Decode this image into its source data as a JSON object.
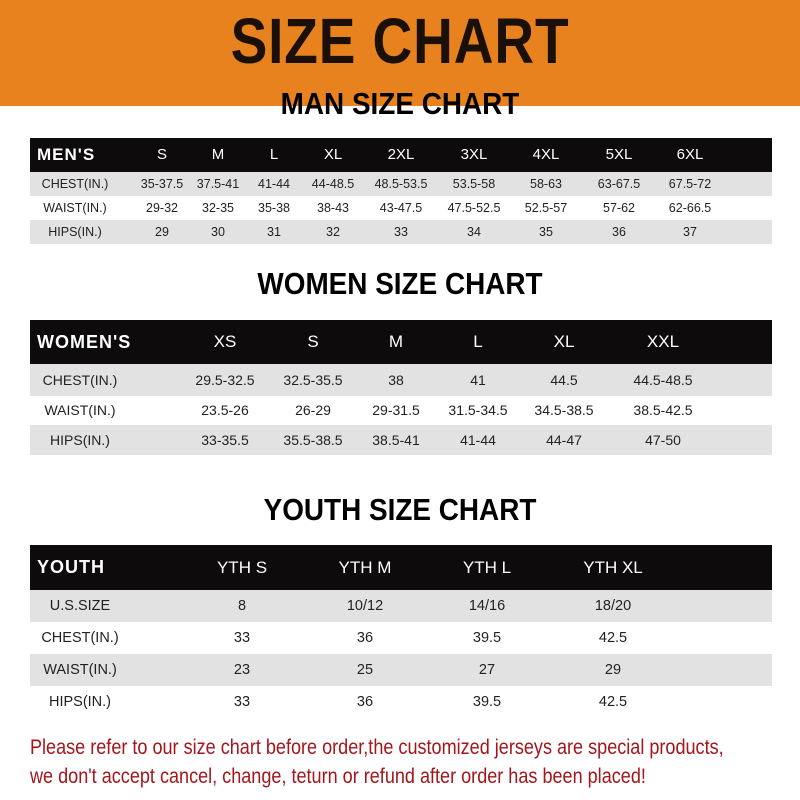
{
  "banner": {
    "title": "SIZE CHART",
    "color": "#e8821e"
  },
  "men": {
    "title": "MAN SIZE CHART",
    "header": [
      "MEN'S",
      "S",
      "M",
      "L",
      "XL",
      "2XL",
      "3XL",
      "4XL",
      "5XL",
      "6XL"
    ],
    "rows": [
      [
        "CHEST(IN.)",
        "35-37.5",
        "37.5-41",
        "41-44",
        "44-48.5",
        "48.5-53.5",
        "53.5-58",
        "58-63",
        "63-67.5",
        "67.5-72"
      ],
      [
        "WAIST(IN.)",
        "29-32",
        "32-35",
        "35-38",
        "38-43",
        "43-47.5",
        "47.5-52.5",
        "52.5-57",
        "57-62",
        "62-66.5"
      ],
      [
        "HIPS(IN.)",
        "29",
        "30",
        "31",
        "32",
        "33",
        "34",
        "35",
        "36",
        "37"
      ]
    ]
  },
  "women": {
    "title": "WOMEN SIZE CHART",
    "header": [
      "WOMEN'S",
      "XS",
      "S",
      "M",
      "L",
      "XL",
      "XXL"
    ],
    "rows": [
      [
        "CHEST(IN.)",
        "29.5-32.5",
        "32.5-35.5",
        "38",
        "41",
        "44.5",
        "44.5-48.5"
      ],
      [
        "WAIST(IN.)",
        "23.5-26",
        "26-29",
        "29-31.5",
        "31.5-34.5",
        "34.5-38.5",
        "38.5-42.5"
      ],
      [
        "HIPS(IN.)",
        "33-35.5",
        "35.5-38.5",
        "38.5-41",
        "41-44",
        "44-47",
        "47-50"
      ]
    ]
  },
  "youth": {
    "title": "YOUTH SIZE CHART",
    "header": [
      "YOUTH",
      "YTH S",
      "YTH M",
      "YTH L",
      "YTH XL"
    ],
    "rows": [
      [
        "U.S.SIZE",
        "8",
        "10/12",
        "14/16",
        "18/20"
      ],
      [
        "CHEST(IN.)",
        "33",
        "36",
        "39.5",
        "42.5"
      ],
      [
        "WAIST(IN.)",
        "23",
        "25",
        "27",
        "29"
      ],
      [
        "HIPS(IN.)",
        "33",
        "36",
        "39.5",
        "42.5"
      ]
    ]
  },
  "footer": {
    "line1": "Please refer to our size chart before order,the customized jerseys are special products,",
    "line2": "we don't accept cancel, change, teturn or refund after order has been placed!",
    "color": "#a3161b"
  }
}
